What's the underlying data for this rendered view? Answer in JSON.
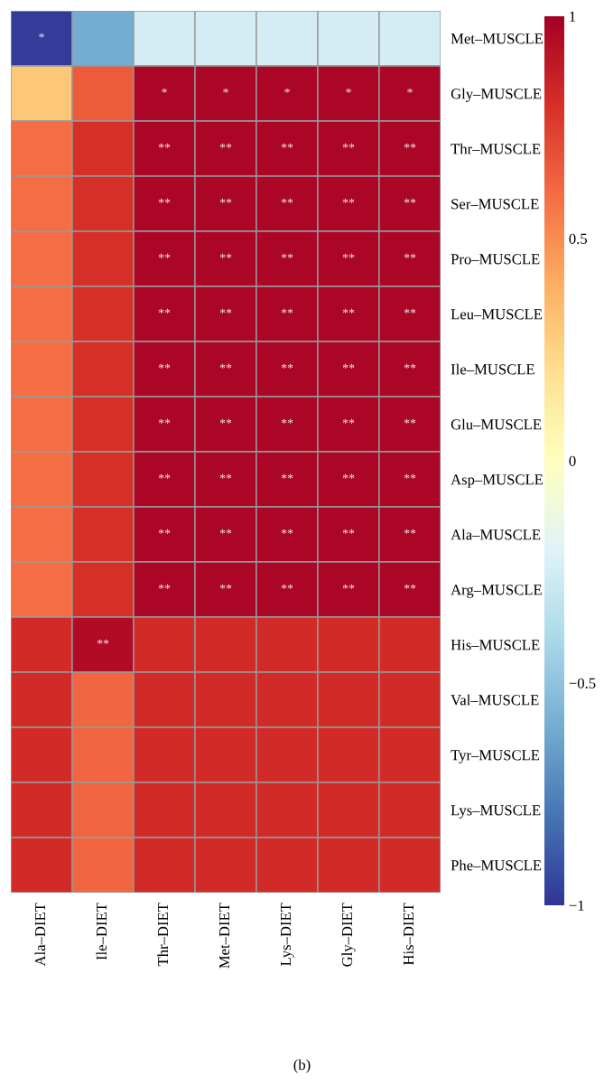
{
  "chart_data": {
    "type": "heatmap",
    "categories": [
      "Ala–DIET",
      "Ile–DIET",
      "Thr–DIET",
      "Met–DIET",
      "Lys–DIET",
      "Gly–DIET",
      "His–DIET"
    ],
    "y_categories": [
      "Met–MUSCLE",
      "Gly–MUSCLE",
      "Thr–MUSCLE",
      "Ser–MUSCLE",
      "Pro–MUSCLE",
      "Leu–MUSCLE",
      "Ile–MUSCLE",
      "Glu–MUSCLE",
      "Asp–MUSCLE",
      "Ala–MUSCLE",
      "Arg–MUSCLE",
      "His–MUSCLE",
      "Val–MUSCLE",
      "Tyr–MUSCLE",
      "Lys–MUSCLE",
      "Phe–MUSCLE"
    ],
    "cells": [
      [
        -0.97,
        -0.6,
        -0.25,
        -0.25,
        -0.25,
        -0.25,
        -0.25
      ],
      [
        0.3,
        0.65,
        0.97,
        0.97,
        0.97,
        0.97,
        0.97
      ],
      [
        0.6,
        0.8,
        0.97,
        0.97,
        0.97,
        0.97,
        0.97
      ],
      [
        0.6,
        0.8,
        0.97,
        0.97,
        0.97,
        0.97,
        0.97
      ],
      [
        0.6,
        0.8,
        0.97,
        0.97,
        0.97,
        0.97,
        0.97
      ],
      [
        0.6,
        0.8,
        0.97,
        0.97,
        0.97,
        0.97,
        0.97
      ],
      [
        0.6,
        0.8,
        0.97,
        0.97,
        0.97,
        0.97,
        0.97
      ],
      [
        0.6,
        0.8,
        0.97,
        0.97,
        0.97,
        0.97,
        0.97
      ],
      [
        0.6,
        0.8,
        0.97,
        0.97,
        0.97,
        0.97,
        0.97
      ],
      [
        0.6,
        0.8,
        0.97,
        0.97,
        0.97,
        0.97,
        0.97
      ],
      [
        0.6,
        0.8,
        0.97,
        0.97,
        0.97,
        0.97,
        0.97
      ],
      [
        0.82,
        0.95,
        0.82,
        0.82,
        0.82,
        0.82,
        0.82
      ],
      [
        0.82,
        0.62,
        0.82,
        0.82,
        0.82,
        0.82,
        0.82
      ],
      [
        0.82,
        0.62,
        0.82,
        0.82,
        0.82,
        0.82,
        0.82
      ],
      [
        0.82,
        0.62,
        0.82,
        0.82,
        0.82,
        0.82,
        0.82
      ],
      [
        0.82,
        0.62,
        0.82,
        0.82,
        0.82,
        0.82,
        0.82
      ]
    ],
    "cell_labels": [
      [
        "*",
        null,
        null,
        null,
        null,
        null,
        null
      ],
      [
        null,
        null,
        "*",
        "*",
        "*",
        "*",
        "*"
      ],
      [
        null,
        null,
        "**",
        "**",
        "**",
        "**",
        "**"
      ],
      [
        null,
        null,
        "**",
        "**",
        "**",
        "**",
        "**"
      ],
      [
        null,
        null,
        "**",
        "**",
        "**",
        "**",
        "**"
      ],
      [
        null,
        null,
        "**",
        "**",
        "**",
        "**",
        "**"
      ],
      [
        null,
        null,
        "**",
        "**",
        "**",
        "**",
        "**"
      ],
      [
        null,
        null,
        "**",
        "**",
        "**",
        "**",
        "**"
      ],
      [
        null,
        null,
        "**",
        "**",
        "**",
        "**",
        "**"
      ],
      [
        null,
        null,
        "**",
        "**",
        "**",
        "**",
        "**"
      ],
      [
        null,
        null,
        "**",
        "**",
        "**",
        "**",
        "**"
      ],
      [
        null,
        "**",
        null,
        null,
        null,
        null,
        null
      ],
      [
        null,
        null,
        null,
        null,
        null,
        null,
        null
      ],
      [
        null,
        null,
        null,
        null,
        null,
        null,
        null
      ],
      [
        null,
        null,
        null,
        null,
        null,
        null,
        null
      ],
      [
        null,
        null,
        null,
        null,
        null,
        null,
        null
      ]
    ],
    "clim": [
      -1,
      1
    ],
    "cticks": [
      1,
      0.5,
      0,
      {
        "value": -0.5,
        "label": "−0.5"
      },
      {
        "value": -1,
        "label": "−1"
      }
    ],
    "annotations": [
      "(b)"
    ]
  }
}
